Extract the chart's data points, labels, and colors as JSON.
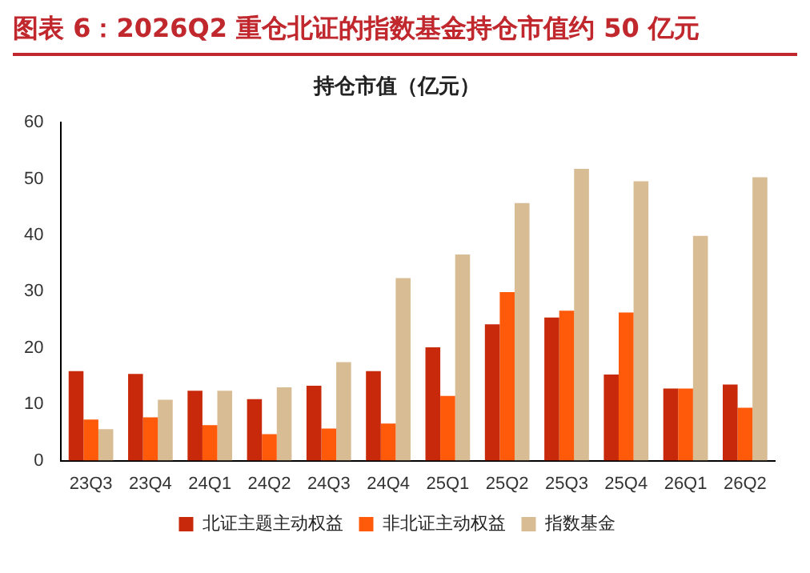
{
  "chart_data": {
    "type": "bar",
    "title": "图表 6：2026Q2 重仓北证的指数基金持仓市值约 50 亿元",
    "subtitle": "持仓市值（亿元）",
    "categories": [
      "23Q3",
      "23Q4",
      "24Q1",
      "24Q2",
      "24Q3",
      "24Q4",
      "25Q1",
      "25Q2",
      "25Q3",
      "25Q4",
      "26Q1",
      "26Q2"
    ],
    "series": [
      {
        "name": "北证主题主动权益",
        "color": "#c8290a",
        "values": [
          15.9,
          15.4,
          12.4,
          10.9,
          13.3,
          15.9,
          20.1,
          24.2,
          25.4,
          15.3,
          12.8,
          13.5
        ]
      },
      {
        "name": "非北证主动权益",
        "color": "#ff5a0a",
        "values": [
          7.3,
          7.7,
          6.3,
          4.7,
          5.7,
          6.6,
          11.5,
          29.9,
          26.6,
          26.3,
          12.8,
          9.4
        ]
      },
      {
        "name": "指数基金",
        "color": "#d8bc94",
        "values": [
          5.6,
          10.8,
          12.4,
          13.0,
          17.5,
          32.4,
          36.6,
          45.7,
          51.8,
          49.6,
          39.9,
          50.3
        ]
      }
    ],
    "ylim": [
      0,
      60
    ],
    "yticks": [
      0,
      10,
      20,
      30,
      40,
      50,
      60
    ],
    "grid": false,
    "legend": "bottom"
  }
}
